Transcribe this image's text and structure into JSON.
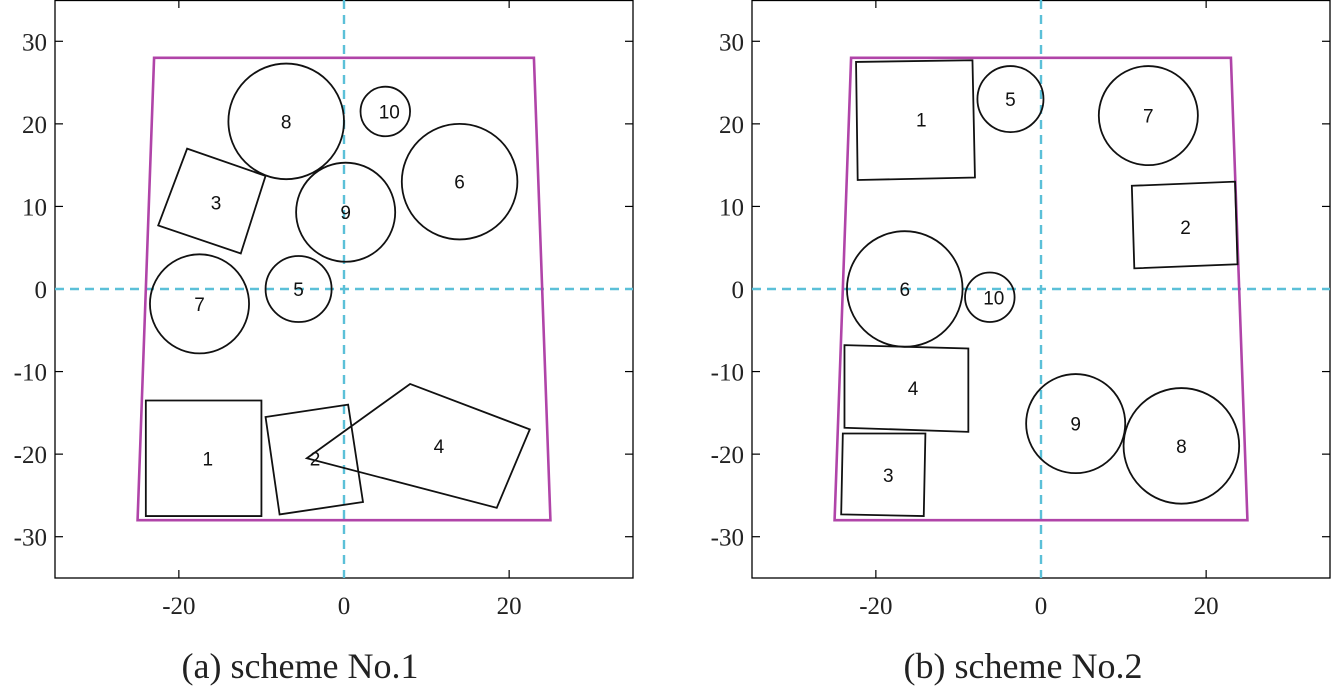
{
  "chart_data": [
    {
      "type": "scatter",
      "caption": "(a) scheme No.1",
      "xlim": [
        -35,
        35
      ],
      "ylim": [
        -35,
        35
      ],
      "xticks": [
        -20,
        0,
        20
      ],
      "yticks": [
        30,
        20,
        10,
        0,
        -10,
        -20,
        -30
      ],
      "xtick_labels": [
        "-20",
        "0",
        "20"
      ],
      "ytick_labels": [
        "30",
        "20",
        "10",
        "0",
        "-10",
        "-20",
        "-30"
      ],
      "boundary": [
        [
          -23,
          28
        ],
        [
          23,
          28
        ],
        [
          25,
          -28
        ],
        [
          -25,
          -28
        ]
      ],
      "circles": [
        {
          "label": "5",
          "cx": -5.5,
          "cy": 0,
          "r": 4
        },
        {
          "label": "6",
          "cx": 14,
          "cy": 13,
          "r": 7
        },
        {
          "label": "7",
          "cx": -17.5,
          "cy": -1.8,
          "r": 6
        },
        {
          "label": "8",
          "cx": -7,
          "cy": 20.3,
          "r": 7
        },
        {
          "label": "9",
          "cx": 0.2,
          "cy": 9.3,
          "r": 6
        },
        {
          "label": "10",
          "cx": 5,
          "cy": 21.5,
          "r": 3
        }
      ],
      "polygons": [
        {
          "label": "1",
          "cx": -16.5,
          "cy": -20.5,
          "points": [
            [
              -24,
              -13.5
            ],
            [
              -10,
              -13.5
            ],
            [
              -10,
              -27.5
            ],
            [
              -24,
              -27.5
            ]
          ]
        },
        {
          "label": "2",
          "cx": -3.5,
          "cy": -20.5,
          "points": [
            [
              -9.5,
              -15.5
            ],
            [
              0.5,
              -14
            ],
            [
              2.3,
              -25.8
            ],
            [
              -7.8,
              -27.3
            ]
          ]
        },
        {
          "label": "3",
          "cx": -15.5,
          "cy": 10.5,
          "points": [
            [
              -19,
              17
            ],
            [
              -9.5,
              13.7
            ],
            [
              -12.5,
              4.3
            ],
            [
              -22.5,
              7.7
            ]
          ]
        },
        {
          "label": "4",
          "cx": 11.5,
          "cy": -19,
          "points": [
            [
              8,
              -11.5
            ],
            [
              22.5,
              -17
            ],
            [
              18.5,
              -26.5
            ],
            [
              -4.5,
              -20.5
            ]
          ]
        }
      ]
    },
    {
      "type": "scatter",
      "caption": "(b) scheme No.2",
      "xlim": [
        -35,
        35
      ],
      "ylim": [
        -35,
        35
      ],
      "xticks": [
        -20,
        0,
        20
      ],
      "yticks": [
        30,
        20,
        10,
        0,
        -10,
        -20,
        -30
      ],
      "xtick_labels": [
        "-20",
        "0",
        "20"
      ],
      "ytick_labels": [
        "30",
        "20",
        "10",
        "0",
        "-10",
        "-20",
        "-30"
      ],
      "boundary": [
        [
          -23,
          28
        ],
        [
          23,
          28
        ],
        [
          25,
          -28
        ],
        [
          -25,
          -28
        ]
      ],
      "circles": [
        {
          "label": "5",
          "cx": -3.7,
          "cy": 23,
          "r": 4
        },
        {
          "label": "6",
          "cx": -16.5,
          "cy": 0,
          "r": 7
        },
        {
          "label": "7",
          "cx": 13,
          "cy": 21,
          "r": 6
        },
        {
          "label": "8",
          "cx": 17,
          "cy": -19,
          "r": 7
        },
        {
          "label": "9",
          "cx": 4.2,
          "cy": -16.3,
          "r": 6
        },
        {
          "label": "10",
          "cx": -6.2,
          "cy": -1,
          "r": 3
        }
      ],
      "polygons": [
        {
          "label": "1",
          "cx": -14.5,
          "cy": 20.5,
          "points": [
            [
              -22.4,
              27.5
            ],
            [
              -8.3,
              27.7
            ],
            [
              -8,
              13.5
            ],
            [
              -22.2,
              13.2
            ]
          ]
        },
        {
          "label": "2",
          "cx": 17.5,
          "cy": 7.5,
          "points": [
            [
              11,
              12.5
            ],
            [
              23.5,
              13
            ],
            [
              23.8,
              3
            ],
            [
              11.3,
              2.5
            ]
          ]
        },
        {
          "label": "3",
          "cx": -18.5,
          "cy": -22.5,
          "points": [
            [
              -24,
              -17.5
            ],
            [
              -14,
              -17.5
            ],
            [
              -14.2,
              -27.5
            ],
            [
              -24.2,
              -27.3
            ]
          ]
        },
        {
          "label": "4",
          "cx": -15.5,
          "cy": -12,
          "points": [
            [
              -23.8,
              -6.8
            ],
            [
              -8.8,
              -7.2
            ],
            [
              -8.8,
              -17.3
            ],
            [
              -23.8,
              -16.8
            ]
          ]
        }
      ]
    }
  ]
}
